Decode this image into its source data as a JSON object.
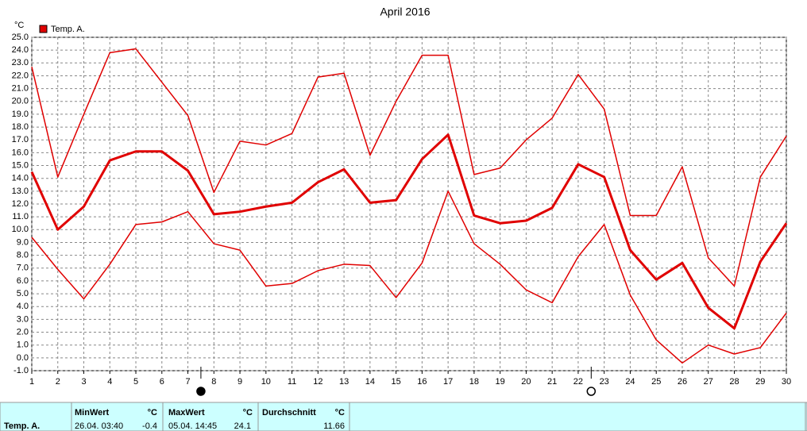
{
  "chart_data": {
    "type": "line",
    "title": "April 2016",
    "y_unit": "°C",
    "x": [
      1,
      2,
      3,
      4,
      5,
      6,
      7,
      8,
      9,
      10,
      11,
      12,
      13,
      14,
      15,
      16,
      17,
      18,
      19,
      20,
      21,
      22,
      23,
      24,
      25,
      26,
      27,
      28,
      29,
      30
    ],
    "series": [
      {
        "name": "Temp. A.",
        "color": "#e00000",
        "max": [
          22.7,
          14.1,
          19.0,
          23.8,
          24.1,
          21.5,
          18.9,
          12.9,
          16.9,
          16.6,
          17.5,
          21.9,
          22.2,
          15.8,
          20.0,
          23.6,
          23.6,
          14.3,
          14.8,
          17.0,
          18.7,
          22.1,
          19.4,
          11.1,
          11.1,
          14.9,
          7.8,
          5.6,
          14.1,
          17.3
        ],
        "mean": [
          14.5,
          10.0,
          11.8,
          15.4,
          16.1,
          16.1,
          14.6,
          11.2,
          11.4,
          11.8,
          12.1,
          13.7,
          14.7,
          12.1,
          12.3,
          15.5,
          17.4,
          11.1,
          10.5,
          10.7,
          11.7,
          15.1,
          14.1,
          8.4,
          6.1,
          7.4,
          3.9,
          2.3,
          7.5,
          10.5
        ],
        "min": [
          9.4,
          6.9,
          4.6,
          7.3,
          10.4,
          10.6,
          11.4,
          8.9,
          8.4,
          5.6,
          5.8,
          6.8,
          7.3,
          7.2,
          4.7,
          7.4,
          13.0,
          8.9,
          7.3,
          5.3,
          4.3,
          7.9,
          10.4,
          4.9,
          1.4,
          -0.4,
          1.0,
          0.3,
          0.8,
          3.5
        ]
      }
    ],
    "xlim": [
      1,
      30
    ],
    "xticks": [
      1,
      2,
      3,
      4,
      5,
      6,
      7,
      8,
      9,
      10,
      11,
      12,
      13,
      14,
      15,
      16,
      17,
      18,
      19,
      20,
      21,
      22,
      23,
      24,
      25,
      26,
      27,
      28,
      29,
      30
    ],
    "ylim": [
      -1,
      25
    ],
    "yticks": [
      {
        "value": -1,
        "label": "-1.0"
      },
      {
        "value": 0,
        "label": "0.0"
      },
      {
        "value": 1,
        "label": "1.0"
      },
      {
        "value": 2,
        "label": "2.0"
      },
      {
        "value": 3,
        "label": "3.0"
      },
      {
        "value": 4,
        "label": "4.0"
      },
      {
        "value": 5,
        "label": "5.0"
      },
      {
        "value": 6,
        "label": "6.0"
      },
      {
        "value": 7,
        "label": "7.0"
      },
      {
        "value": 8,
        "label": "8.0"
      },
      {
        "value": 9,
        "label": "9.0"
      },
      {
        "value": 10,
        "label": "10.0"
      },
      {
        "value": 11,
        "label": "11.0"
      },
      {
        "value": 12,
        "label": "12.0"
      },
      {
        "value": 13,
        "label": "13.0"
      },
      {
        "value": 14,
        "label": "14.0"
      },
      {
        "value": 15,
        "label": "15.0"
      },
      {
        "value": 16,
        "label": "16.0"
      },
      {
        "value": 17,
        "label": "17.0"
      },
      {
        "value": 18,
        "label": "18.0"
      },
      {
        "value": 19,
        "label": "19.0"
      },
      {
        "value": 20,
        "label": "20.0"
      },
      {
        "value": 21,
        "label": "21.0"
      },
      {
        "value": 22,
        "label": "22.0"
      },
      {
        "value": 23,
        "label": "23.0"
      },
      {
        "value": 24,
        "label": "24.0"
      },
      {
        "value": 25,
        "label": "25.0"
      }
    ],
    "grid": true,
    "moon_phases": [
      {
        "x": 7.5,
        "filled": true
      },
      {
        "x": 22.5,
        "filled": false
      }
    ]
  },
  "summary": {
    "sensor": "Temp. A.",
    "min": {
      "heading": "MinWert",
      "unit": "°C",
      "time": "26.04. 03:40",
      "value": "-0.4"
    },
    "max": {
      "heading": "MaxWert",
      "unit": "°C",
      "time": "05.04. 14:45",
      "value": "24.1"
    },
    "mean": {
      "heading": "Durchschnitt",
      "unit": "°C",
      "value": "11.66"
    }
  }
}
